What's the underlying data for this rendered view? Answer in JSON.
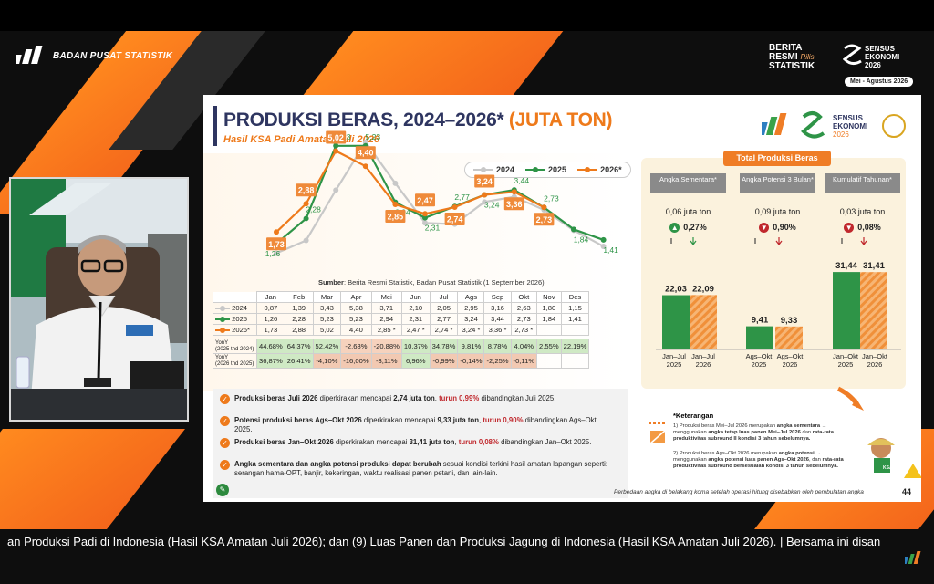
{
  "header": {
    "org_name": "BADAN PUSAT STATISTIK",
    "brs_line1": "BERITA",
    "brs_line2": "RESMI",
    "brs_line3": "STATISTIK",
    "brs_tag": "Rilis",
    "sensus_line1": "SENSUS",
    "sensus_line2": "EKONOMI",
    "sensus_line3": "2026",
    "sensus_period": "Mei - Agustus 2026"
  },
  "slide": {
    "title_main": "PRODUKSI BERAS, 2024–2026*",
    "title_unit": "(JUTA TON)",
    "subtitle": "Hasil KSA Padi Amatan Juli 2026",
    "logo_sensus_1": "SENSUS",
    "logo_sensus_2": "EKONOMI",
    "logo_sensus_3": "2026",
    "source_label": "Sumber",
    "source_text": ": Berita Resmi Statistik, Badan Pusat Statistik (1 September 2026)",
    "legend": [
      "2024",
      "2025",
      "2026*"
    ],
    "months": [
      "Jan",
      "Feb",
      "Mar",
      "Apr",
      "Mei",
      "Jun",
      "Jul",
      "Ags",
      "Sep",
      "Okt",
      "Nov",
      "Des"
    ],
    "row_labels": [
      "2024",
      "2025",
      "2026*"
    ],
    "table_rows": [
      [
        "0,87",
        "1,39",
        "3,43",
        "5,38",
        "3,71",
        "2,10",
        "2,05",
        "2,95",
        "3,16",
        "2,63",
        "1,80",
        "1,15"
      ],
      [
        "1,26",
        "2,28",
        "5,23",
        "5,23",
        "2,94",
        "2,31",
        "2,77",
        "3,24",
        "3,44",
        "2,73",
        "1,84",
        "1,41"
      ],
      [
        "1,73",
        "2,88",
        "5,02",
        "4,40",
        "2,85 *",
        "2,47 *",
        "2,74 *",
        "3,24 *",
        "3,36 *",
        "2,73 *",
        "",
        ""
      ]
    ],
    "yoy_label_1a": "YonY",
    "yoy_label_1b": "(2025 thd 2024)",
    "yoy_label_2a": "YonY",
    "yoy_label_2b": "(2026 thd 2025)",
    "yoy_row1": [
      "44,68%",
      "64,37%",
      "52,42%",
      "-2,68%",
      "-20,88%",
      "10,37%",
      "34,78%",
      "9,81%",
      "8,78%",
      "4,04%",
      "2,55%",
      "22,19%"
    ],
    "yoy_row2": [
      "36,87%",
      "26,41%",
      "-4,10%",
      "-16,00%",
      "-3,11%",
      "6,96%",
      "-0,99%",
      "-0,14%",
      "-2,25%",
      "-0,11%",
      "",
      ""
    ],
    "bullets": [
      {
        "bold": "Produksi beras Juli 2026",
        "mid": " diperkirakan mencapai ",
        "value": "2,74 juta ton",
        "sep": ", ",
        "red": "turun 0,99%",
        "tail": " dibandingkan Juli 2025."
      },
      {
        "bold": "Potensi produksi beras Ags–Okt 2026",
        "mid": " diperkirakan mencapai ",
        "value": "9,33 juta ton",
        "sep": ", ",
        "red": "turun 0,90%",
        "tail": " dibandingkan Ags–Okt 2025."
      },
      {
        "bold": "Produksi beras Jan–Okt 2026",
        "mid": " diperkirakan mencapai ",
        "value": "31,41 juta ton",
        "sep": ", ",
        "red": "turun 0,08%",
        "tail": " dibandingkan Jan–Okt 2025."
      },
      {
        "bold": "Angka sementara dan angka potensi produksi dapat berubah",
        "mid": " sesuai kondisi terkini hasil amatan lapangan seperti: serangan hama-OPT, banjir, kekeringan, waktu realisasi panen petani, dan lain-lain.",
        "value": "",
        "sep": "",
        "red": "",
        "tail": ""
      }
    ],
    "total_title": "Total Produksi Beras",
    "panels": [
      {
        "head": "Angka Sementara*",
        "amount": "0,06 juta ton",
        "change": "0,27%",
        "dir": "up",
        "v2025": "22,03",
        "v2026": "22,09",
        "x1": "Jan–Jul",
        "x2": "Jan–Jul",
        "y1": "2025",
        "y2": "2026",
        "n2025": 22.03,
        "n2026": 22.09
      },
      {
        "head": "Angka Potensi 3 Bulan*",
        "amount": "0,09 juta ton",
        "change": "0,90%",
        "dir": "down",
        "v2025": "9,41",
        "v2026": "9,33",
        "x1": "Ags–Okt",
        "x2": "Ags–Okt",
        "y1": "2025",
        "y2": "2026",
        "n2025": 9.41,
        "n2026": 9.33
      },
      {
        "head": "Kumulatif Tahunan*",
        "amount": "0,03 juta ton",
        "change": "0,08%",
        "dir": "down",
        "v2025": "31,44",
        "v2026": "31,41",
        "x1": "Jan–Okt",
        "x2": "Jan–Okt",
        "y1": "2025",
        "y2": "2026",
        "n2025": 31.44,
        "n2026": 31.41
      }
    ],
    "keterangan_title": "*Keterangan",
    "ket_1_num": "1)",
    "ket_1_a": "Produksi beras Mei–Jul 2026 merupakan ",
    "ket_1_b": "angka sementara",
    "ket_1_c": " → menggunakan ",
    "ket_1_d": "angka tetap luas panen Mei–Jul 2026",
    "ket_1_e": " dan ",
    "ket_1_f": "rata-rata produktivitas subround II kondisi 3 tahun sebelumnya.",
    "ket_2_num": "2)",
    "ket_2_a": "Produksi beras Ags–Okt 2026 merupakan ",
    "ket_2_b": "angka potensi",
    "ket_2_c": " → menggunakan ",
    "ket_2_d": "angka potensi luas panen Ags–Okt 2026",
    "ket_2_e": ", dan ",
    "ket_2_f": "rata-rata produktivitas subround bersesuaian kondisi 3 tahun sebelumnya.",
    "ksa_label": "KSA",
    "footnote": "Perbedaan angka di belakang koma setelah operasi hitung disebabkan oleh pembulatan angka",
    "page_number": "44"
  },
  "ticker": {
    "text": "an Produksi Padi di Indonesia (Hasil KSA Amatan Juli 2026); dan (9) Luas Panen dan Produksi Jagung di Indonesia (Hasil KSA Amatan Juli 2026). |  Bersama ini disan"
  },
  "colors": {
    "orange": "#ee7a1b",
    "green": "#2e9447",
    "gray": "#c8c8c8",
    "navy": "#2e3560",
    "red": "#c0282d"
  },
  "chart_data": {
    "type": "line",
    "categories": [
      "Jan",
      "Feb",
      "Mar",
      "Apr",
      "Mei",
      "Jun",
      "Jul",
      "Ags",
      "Sep",
      "Okt",
      "Nov",
      "Des"
    ],
    "series": [
      {
        "name": "2024",
        "values": [
          0.87,
          1.39,
          3.43,
          5.38,
          3.71,
          2.1,
          2.05,
          2.95,
          3.16,
          2.63,
          1.8,
          1.15
        ]
      },
      {
        "name": "2025",
        "values": [
          1.26,
          2.28,
          5.23,
          5.23,
          2.94,
          2.31,
          2.77,
          3.24,
          3.44,
          2.73,
          1.84,
          1.41
        ]
      },
      {
        "name": "2026*",
        "values": [
          1.73,
          2.88,
          5.02,
          4.4,
          2.85,
          2.47,
          2.74,
          3.24,
          3.36,
          2.73,
          null,
          null
        ]
      }
    ],
    "labels_2025": [
      "1,26",
      "2,28",
      "5,23",
      "5,23",
      "2,94",
      "2,31",
      "2,77",
      "3,24",
      "3,44",
      "2,73",
      "1,84",
      "1,41"
    ],
    "labels_2026": [
      "1,73",
      "2,88",
      "5,02",
      "4,40",
      "2,85",
      "2,47",
      "2,74",
      "3,24",
      "3,36",
      "2,73"
    ],
    "title": "PRODUKSI BERAS, 2024–2026* (JUTA TON)",
    "ylim": [
      0,
      6
    ],
    "legend_position": "top-right",
    "grid": false
  }
}
